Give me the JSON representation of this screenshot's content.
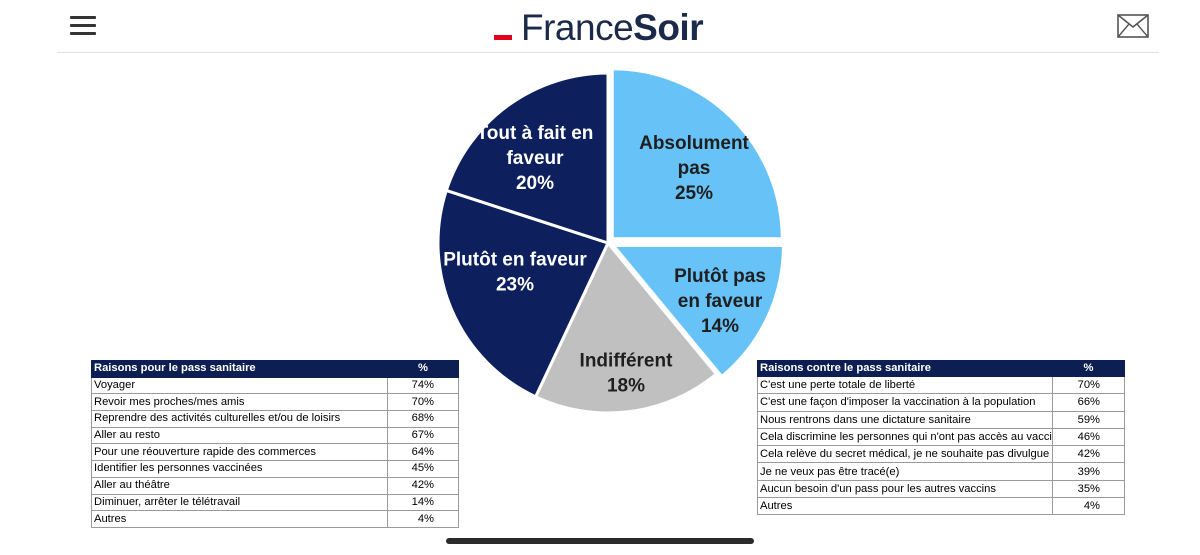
{
  "header": {
    "logo_part1": "France",
    "logo_part2": "Soir",
    "menu_icon": "hamburger-menu-icon",
    "mail_icon": "mail-icon",
    "brand_red": "#e3001b",
    "brand_navy": "#1c2a4a"
  },
  "chart_data": {
    "type": "pie",
    "slices": [
      {
        "label_lines": [
          "Absolument",
          "pas"
        ],
        "value": 25,
        "value_label": "25%",
        "color": "#66c2f7",
        "text_color": "#1f1f1f"
      },
      {
        "label_lines": [
          "Plutôt pas",
          "en faveur"
        ],
        "value": 14,
        "value_label": "14%",
        "color": "#66c2f7",
        "text_color": "#1f1f1f"
      },
      {
        "label_lines": [
          "Indifférent"
        ],
        "value": 18,
        "value_label": "18%",
        "color": "#c0c0c0",
        "text_color": "#1f1f1f"
      },
      {
        "label_lines": [
          "Plutôt en faveur"
        ],
        "value": 23,
        "value_label": "23%",
        "color": "#0d1f5c",
        "text_color": "#ffffff"
      },
      {
        "label_lines": [
          "Tout à fait en",
          "faveur"
        ],
        "value": 20,
        "value_label": "20%",
        "color": "#0d1f5c",
        "text_color": "#ffffff"
      }
    ]
  },
  "table_pour": {
    "header_label": "Raisons pour le pass sanitaire",
    "header_pct": "%",
    "rows": [
      {
        "label": "Voyager",
        "pct": "74%"
      },
      {
        "label": "Revoir mes proches/mes amis",
        "pct": "70%"
      },
      {
        "label": "Reprendre des activités culturelles et/ou de loisirs",
        "pct": "68%"
      },
      {
        "label": "Aller au resto",
        "pct": "67%"
      },
      {
        "label": "Pour une réouverture rapide des commerces",
        "pct": "64%"
      },
      {
        "label": "Identifier les personnes vaccinées",
        "pct": "45%"
      },
      {
        "label": "Aller au théâtre",
        "pct": "42%"
      },
      {
        "label": "Diminuer, arrêter le télétravail",
        "pct": "14%"
      },
      {
        "label": "Autres",
        "pct": "4%"
      }
    ]
  },
  "table_contre": {
    "header_label": "Raisons contre le pass sanitaire",
    "header_pct": "%",
    "rows": [
      {
        "label": "C'est une perte totale de liberté",
        "pct": "70%"
      },
      {
        "label": "C'est une façon d'imposer la vaccination à la population",
        "pct": "66%"
      },
      {
        "label": "Nous rentrons dans une dictature sanitaire",
        "pct": "59%"
      },
      {
        "label": "Cela discrimine les personnes qui n'ont pas accès au vacci",
        "pct": "46%"
      },
      {
        "label": "Cela relève du secret médical, je ne souhaite pas divulgue",
        "pct": "42%"
      },
      {
        "label": "Je ne veux pas être tracé(e)",
        "pct": "39%"
      },
      {
        "label": "Aucun besoin d'un pass pour les autres vaccins",
        "pct": "35%"
      },
      {
        "label": "Autres",
        "pct": "4%"
      }
    ]
  }
}
